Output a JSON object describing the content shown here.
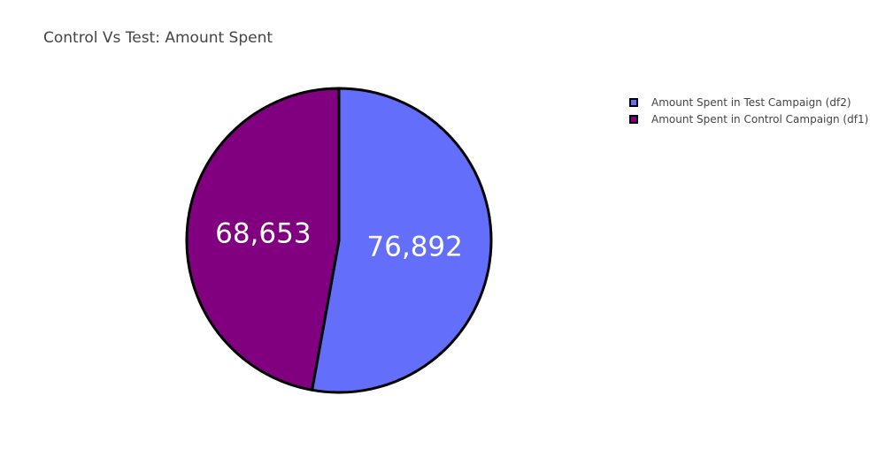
{
  "chart_data": {
    "type": "pie",
    "title": "Control Vs Test: Amount Spent",
    "labels": [
      "Amount Spent in Test Campaign (df2)",
      "Amount Spent in Control Campaign (df1)"
    ],
    "values": [
      76892,
      68653
    ],
    "value_labels": [
      "76,892",
      "68,653"
    ],
    "colors": [
      "#636efa",
      "#800080"
    ],
    "slice_border_color": "#000000",
    "direction": "clockwise",
    "start_angle": "top",
    "legend_position": "top-right"
  }
}
